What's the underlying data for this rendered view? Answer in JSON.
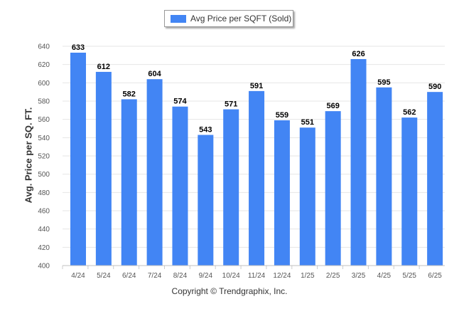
{
  "chart_data": {
    "type": "bar",
    "categories": [
      "4/24",
      "5/24",
      "6/24",
      "7/24",
      "8/24",
      "9/24",
      "10/24",
      "11/24",
      "12/24",
      "1/25",
      "2/25",
      "3/25",
      "4/25",
      "5/25",
      "6/25"
    ],
    "series": [
      {
        "name": "Avg Price per SQFT (Sold)",
        "values": [
          633,
          612,
          582,
          604,
          574,
          543,
          571,
          591,
          559,
          551,
          569,
          626,
          595,
          562,
          590
        ]
      }
    ],
    "xlabel": "",
    "ylabel": "Avg. Price per SQ. FT.",
    "ylim": [
      400,
      640
    ],
    "yticks": [
      400,
      420,
      440,
      460,
      480,
      500,
      520,
      540,
      560,
      580,
      600,
      620,
      640
    ],
    "grid": true,
    "legend_position": "top-center",
    "bar_color": "#4285f4",
    "data_labels": true
  },
  "footer": {
    "copyright": "Copyright © Trendgraphix, Inc."
  }
}
